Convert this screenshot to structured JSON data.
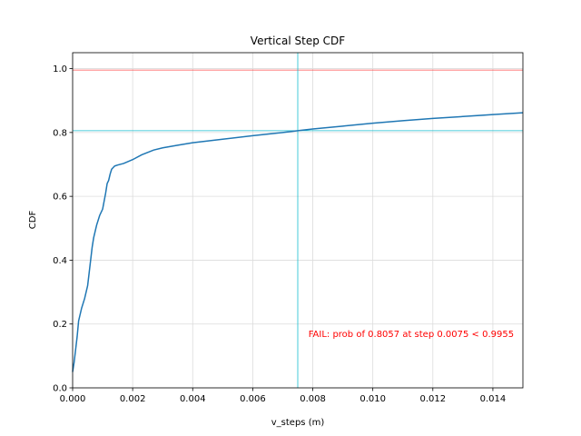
{
  "chart_data": {
    "type": "line",
    "title": "Vertical Step CDF",
    "xlabel": "v_steps (m)",
    "ylabel": "CDF",
    "xlim": [
      0.0,
      0.015
    ],
    "ylim": [
      0.0,
      1.05
    ],
    "grid": true,
    "x_ticks": [
      "0.000",
      "0.002",
      "0.004",
      "0.006",
      "0.008",
      "0.010",
      "0.012",
      "0.014"
    ],
    "x_tick_values": [
      0.0,
      0.002,
      0.004,
      0.006,
      0.008,
      0.01,
      0.012,
      0.014
    ],
    "y_ticks": [
      "0.0",
      "0.2",
      "0.4",
      "0.6",
      "0.8",
      "1.0"
    ],
    "y_tick_values": [
      0.0,
      0.2,
      0.4,
      0.6,
      0.8,
      1.0
    ],
    "series": [
      {
        "color": "#1f77b4",
        "x": [
          0.0,
          5e-05,
          0.0001,
          0.00015,
          0.0002,
          0.0003,
          0.0004,
          0.0005,
          0.00055,
          0.0006,
          0.00065,
          0.0007,
          0.00075,
          0.0008,
          0.0009,
          0.001,
          0.0011,
          0.00115,
          0.0012,
          0.00125,
          0.0013,
          0.0014,
          0.0015,
          0.0017,
          0.002,
          0.0023,
          0.0027,
          0.003,
          0.0035,
          0.004,
          0.005,
          0.006,
          0.007,
          0.0075,
          0.008,
          0.009,
          0.01,
          0.011,
          0.012,
          0.013,
          0.014,
          0.015
        ],
        "y": [
          0.05,
          0.08,
          0.12,
          0.16,
          0.21,
          0.25,
          0.28,
          0.32,
          0.36,
          0.4,
          0.44,
          0.47,
          0.49,
          0.51,
          0.54,
          0.56,
          0.61,
          0.64,
          0.65,
          0.67,
          0.685,
          0.695,
          0.698,
          0.703,
          0.715,
          0.73,
          0.745,
          0.752,
          0.76,
          0.768,
          0.779,
          0.79,
          0.8,
          0.8057,
          0.811,
          0.82,
          0.829,
          0.837,
          0.844,
          0.85,
          0.856,
          0.862
        ]
      }
    ],
    "threshold_line": {
      "y": 0.9955,
      "color": "#ff0000"
    },
    "crosshair": {
      "x": 0.0075,
      "y": 0.8057,
      "color": "#17becf"
    },
    "annotation": {
      "text": "FAIL: prob of 0.8057 at step 0.0075 < 0.9955",
      "color": "#ff0000",
      "x": 0.0147,
      "y": 0.16
    }
  }
}
